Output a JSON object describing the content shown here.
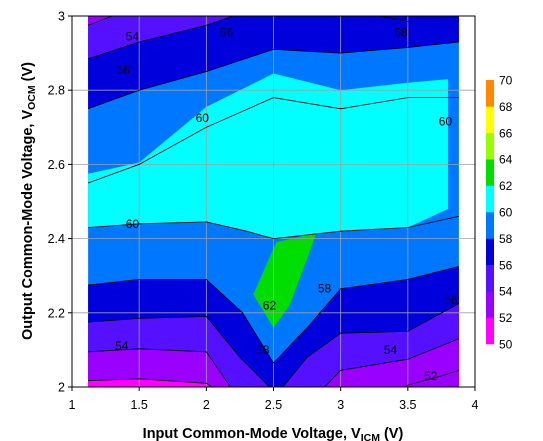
{
  "chart_data": {
    "type": "contour",
    "xlabel": "Input Common-Mode Voltage, V",
    "xlabel_sub": "ICM",
    "xlabel_unit": " (V)",
    "ylabel": "Output Common-Mode Voltage, V",
    "ylabel_sub": "OCM",
    "ylabel_unit": " (V)",
    "xlim": [
      1,
      4
    ],
    "ylim": [
      2,
      3
    ],
    "x_ticks": [
      "1",
      "1.5",
      "2",
      "2.5",
      "3",
      "3.5",
      "4"
    ],
    "y_ticks": [
      "2",
      "2.2",
      "2.4",
      "2.6",
      "2.8",
      "3"
    ],
    "x_tick_values": [
      1,
      1.5,
      2,
      2.5,
      3,
      3.5,
      4
    ],
    "y_tick_values": [
      2,
      2.2,
      2.4,
      2.6,
      2.8,
      3
    ],
    "grid": true,
    "data_x_range": [
      1.12,
      3.88
    ],
    "legend": {
      "placement": "right",
      "levels": [
        "50",
        "52",
        "54",
        "56",
        "58",
        "60",
        "62",
        "64",
        "66",
        "68",
        "70"
      ],
      "level_values": [
        50,
        52,
        54,
        56,
        58,
        60,
        62,
        64,
        66,
        68,
        70
      ],
      "colors": [
        "#ff00ff",
        "#9900ff",
        "#5511ff",
        "#0000dd",
        "#0077ff",
        "#00ffff",
        "#00dd00",
        "#99ff00",
        "#ffff00",
        "#ff8800",
        "#ff0000"
      ]
    },
    "contours": [
      {
        "level": 52,
        "points": [
          [
            1.12,
            2.017
          ],
          [
            1.5,
            2.022
          ],
          [
            2.0,
            2.01
          ],
          [
            2.04,
            2.0
          ]
        ]
      },
      {
        "level": 52,
        "points": [
          [
            3.48,
            2.0
          ],
          [
            3.5,
            2.005
          ],
          [
            3.75,
            2.03
          ],
          [
            3.88,
            2.045
          ]
        ]
      },
      {
        "level": 54,
        "points": [
          [
            1.12,
            2.095
          ],
          [
            1.5,
            2.103
          ],
          [
            2.0,
            2.095
          ],
          [
            2.18,
            2.0
          ]
        ]
      },
      {
        "level": 54,
        "points": [
          [
            2.88,
            2.0
          ],
          [
            3.0,
            2.045
          ],
          [
            3.5,
            2.075
          ],
          [
            3.88,
            2.13
          ]
        ]
      },
      {
        "level": 56,
        "points": [
          [
            1.12,
            2.175
          ],
          [
            1.5,
            2.185
          ],
          [
            2.0,
            2.19
          ],
          [
            2.25,
            2.08
          ],
          [
            2.47,
            2.0
          ]
        ]
      },
      {
        "level": 56,
        "points": [
          [
            2.57,
            2.0
          ],
          [
            2.75,
            2.08
          ],
          [
            3.0,
            2.145
          ],
          [
            3.5,
            2.15
          ],
          [
            3.88,
            2.225
          ]
        ]
      },
      {
        "level": 58,
        "points": [
          [
            1.12,
            2.275
          ],
          [
            1.5,
            2.29
          ],
          [
            2.0,
            2.29
          ],
          [
            2.27,
            2.2
          ],
          [
            2.5,
            2.065
          ],
          [
            2.75,
            2.16
          ],
          [
            3.0,
            2.265
          ],
          [
            3.5,
            2.29
          ],
          [
            3.88,
            2.325
          ]
        ]
      },
      {
        "level": 60,
        "points": [
          [
            1.12,
            2.43
          ],
          [
            1.5,
            2.44
          ],
          [
            2.0,
            2.445
          ],
          [
            2.3,
            2.42
          ],
          [
            2.5,
            2.4
          ],
          [
            3.0,
            2.42
          ],
          [
            3.5,
            2.43
          ],
          [
            3.88,
            2.46
          ]
        ]
      },
      {
        "level": 60,
        "points": [
          [
            1.12,
            2.55
          ],
          [
            1.5,
            2.6
          ],
          [
            2.0,
            2.7
          ],
          [
            2.5,
            2.78
          ],
          [
            3.0,
            2.75
          ],
          [
            3.5,
            2.78
          ],
          [
            3.88,
            2.78
          ]
        ]
      },
      {
        "level": 58,
        "points": [
          [
            1.12,
            2.75
          ],
          [
            1.5,
            2.8
          ],
          [
            2.0,
            2.85
          ],
          [
            2.5,
            2.91
          ],
          [
            3.0,
            2.9
          ],
          [
            3.5,
            2.915
          ],
          [
            3.88,
            2.93
          ]
        ]
      },
      {
        "level": 56,
        "points": [
          [
            1.12,
            2.885
          ],
          [
            1.5,
            2.93
          ],
          [
            2.0,
            2.975
          ],
          [
            2.2,
            3.0
          ]
        ]
      },
      {
        "level": 56,
        "points": [
          [
            3.3,
            3.0
          ],
          [
            3.5,
            2.985
          ],
          [
            3.88,
            2.985
          ]
        ]
      },
      {
        "level": 54,
        "points": [
          [
            1.12,
            2.975
          ],
          [
            1.3,
            3.0
          ]
        ]
      }
    ],
    "contour_labels": [
      {
        "text": "54",
        "x": 1.45,
        "y": 2.945
      },
      {
        "text": "56",
        "x": 2.15,
        "y": 2.955
      },
      {
        "text": "58",
        "x": 3.45,
        "y": 2.955
      },
      {
        "text": "56",
        "x": 1.38,
        "y": 2.855
      },
      {
        "text": "60",
        "x": 1.97,
        "y": 2.725
      },
      {
        "text": "60",
        "x": 3.78,
        "y": 2.715
      },
      {
        "text": "60",
        "x": 1.45,
        "y": 2.44
      },
      {
        "text": "62",
        "x": 2.47,
        "y": 2.22
      },
      {
        "text": "58",
        "x": 2.88,
        "y": 2.265
      },
      {
        "text": "56",
        "x": 3.82,
        "y": 2.235
      },
      {
        "text": "54",
        "x": 1.37,
        "y": 2.11
      },
      {
        "text": "58",
        "x": 2.42,
        "y": 2.1
      },
      {
        "text": "54",
        "x": 3.37,
        "y": 2.1
      },
      {
        "text": "52",
        "x": 3.67,
        "y": 2.03
      }
    ]
  }
}
